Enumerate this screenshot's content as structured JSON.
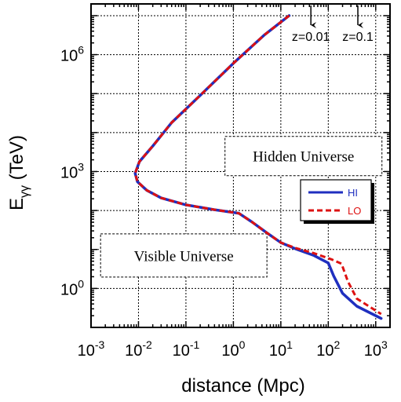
{
  "chart_data": {
    "type": "line",
    "xlabel": "distance (Mpc)",
    "ylabel_main": "E",
    "ylabel_sub": "γγ",
    "ylabel_unit": " (TeV)",
    "x_scale": "log",
    "y_scale": "log",
    "xlim": [
      0.001,
      2000
    ],
    "ylim": [
      0.1,
      20000000
    ],
    "grid": true,
    "x_ticks": [
      {
        "base": "10",
        "exp": "-3",
        "value": 0.001
      },
      {
        "base": "10",
        "exp": "-2",
        "value": 0.01
      },
      {
        "base": "10",
        "exp": "-1",
        "value": 0.1
      },
      {
        "base": "10",
        "exp": "0",
        "value": 1
      },
      {
        "base": "10",
        "exp": "1",
        "value": 10
      },
      {
        "base": "10",
        "exp": "2",
        "value": 100
      },
      {
        "base": "10",
        "exp": "3",
        "value": 1000
      }
    ],
    "y_ticks": [
      {
        "base": "10",
        "exp": "0",
        "value": 1
      },
      {
        "base": "10",
        "exp": "3",
        "value": 1000
      },
      {
        "base": "10",
        "exp": "6",
        "value": 1000000
      }
    ],
    "legend": {
      "placement": "right",
      "entries": [
        {
          "name": "HI",
          "color": "#1f2fbf",
          "style": "solid"
        },
        {
          "name": "LO",
          "color": "#dd1111",
          "style": "dashed"
        }
      ]
    },
    "series": [
      {
        "name": "HI",
        "color": "#1f2fbf",
        "style": "solid",
        "points": [
          [
            15,
            10000000
          ],
          [
            4.5,
            3200000
          ],
          [
            1.0,
            600000
          ],
          [
            0.2,
            90000
          ],
          [
            0.05,
            18000
          ],
          [
            0.02,
            4500
          ],
          [
            0.0105,
            1800
          ],
          [
            0.0085,
            900
          ],
          [
            0.0095,
            550
          ],
          [
            0.015,
            330
          ],
          [
            0.03,
            210
          ],
          [
            0.1,
            140
          ],
          [
            0.4,
            105
          ],
          [
            1.3,
            85
          ],
          [
            2.5,
            50
          ],
          [
            5,
            27
          ],
          [
            10,
            15
          ],
          [
            20,
            10.5
          ],
          [
            50,
            7
          ],
          [
            100,
            4.5
          ],
          [
            130,
            2.1
          ],
          [
            200,
            0.75
          ],
          [
            400,
            0.35
          ],
          [
            1300,
            0.17
          ]
        ]
      },
      {
        "name": "LO",
        "color": "#dd1111",
        "style": "dashed",
        "points": [
          [
            15,
            10000000
          ],
          [
            4.5,
            3200000
          ],
          [
            1.0,
            600000
          ],
          [
            0.2,
            90000
          ],
          [
            0.05,
            18000
          ],
          [
            0.02,
            4500
          ],
          [
            0.0105,
            1800
          ],
          [
            0.0085,
            900
          ],
          [
            0.0095,
            550
          ],
          [
            0.015,
            330
          ],
          [
            0.03,
            210
          ],
          [
            0.1,
            140
          ],
          [
            0.4,
            105
          ],
          [
            1.3,
            85
          ],
          [
            2.5,
            50
          ],
          [
            5,
            27
          ],
          [
            10,
            15
          ],
          [
            20,
            11
          ],
          [
            50,
            8
          ],
          [
            120,
            5.5
          ],
          [
            190,
            4.3
          ],
          [
            260,
            1.5
          ],
          [
            400,
            0.55
          ],
          [
            1300,
            0.22
          ]
        ]
      }
    ],
    "annotations": {
      "regions": [
        {
          "text": "Hidden Universe",
          "x": 30,
          "y": 2500
        },
        {
          "text": "Visible Universe",
          "x": 0.09,
          "y": 7
        }
      ],
      "redshift_markers": [
        {
          "label": "z=0.01",
          "distance": 43
        },
        {
          "label": "z=0.1",
          "distance": 420
        }
      ]
    }
  }
}
